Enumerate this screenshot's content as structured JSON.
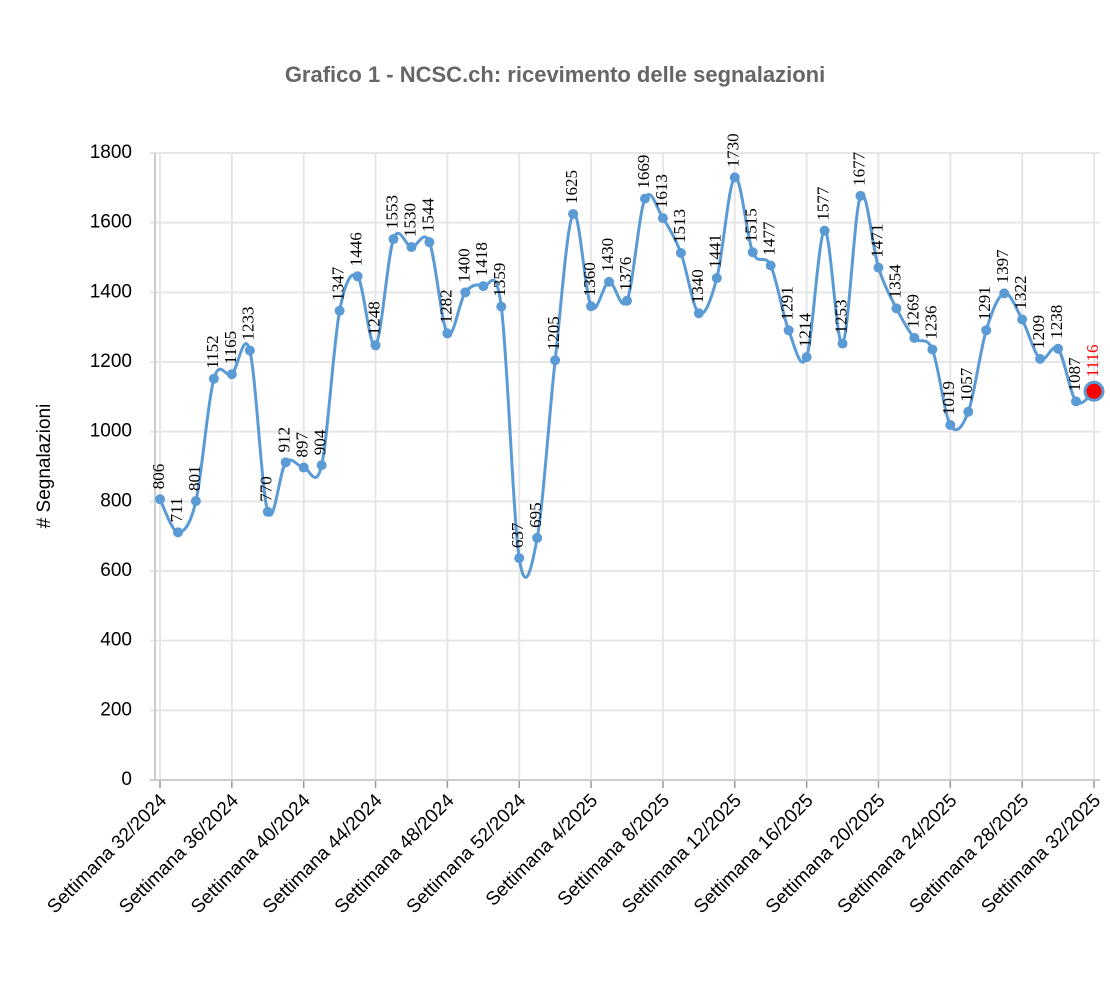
{
  "chart_data": {
    "type": "line",
    "title": "Grafico 1 - NCSC.ch: ricevimento delle segnalazioni",
    "y_label": "# Segnalazioni",
    "categories": [
      "Settimana 32/2024",
      null,
      null,
      null,
      "Settimana 36/2024",
      null,
      null,
      null,
      "Settimana 40/2024",
      null,
      null,
      null,
      "Settimana 44/2024",
      null,
      null,
      null,
      "Settimana 48/2024",
      null,
      null,
      null,
      "Settimana 52/2024",
      null,
      null,
      null,
      "Settimana 4/2025",
      null,
      null,
      null,
      "Settimana 8/2025",
      null,
      null,
      null,
      "Settimana 12/2025",
      null,
      null,
      null,
      "Settimana 16/2025",
      null,
      null,
      null,
      "Settimana 20/2025",
      null,
      null,
      null,
      "Settimana 24/2025",
      null,
      null,
      null,
      "Settimana 28/2025",
      null,
      null,
      null,
      "Settimana 32/2025"
    ],
    "series": [
      {
        "name": "Segnalazioni",
        "color": "#5b9bd5",
        "values": [
          806,
          711,
          801,
          1152,
          1165,
          1233,
          770,
          912,
          897,
          904,
          1347,
          1446,
          1248,
          1553,
          1530,
          1544,
          1282,
          1400,
          1418,
          1359,
          637,
          695,
          1205,
          1625,
          1360,
          1430,
          1376,
          1669,
          1613,
          1513,
          1340,
          1441,
          1730,
          1515,
          1477,
          1291,
          1214,
          1577,
          1253,
          1677,
          1471,
          1354,
          1269,
          1236,
          1019,
          1057,
          1291,
          1397,
          1322,
          1209,
          1238,
          1087,
          1116
        ]
      }
    ],
    "highlight": {
      "index": 52,
      "color": "#ff0000"
    },
    "ylim": [
      0,
      1800
    ],
    "yticks": [
      0,
      200,
      400,
      600,
      800,
      1000,
      1200,
      1400,
      1600,
      1800
    ],
    "grid": true
  }
}
